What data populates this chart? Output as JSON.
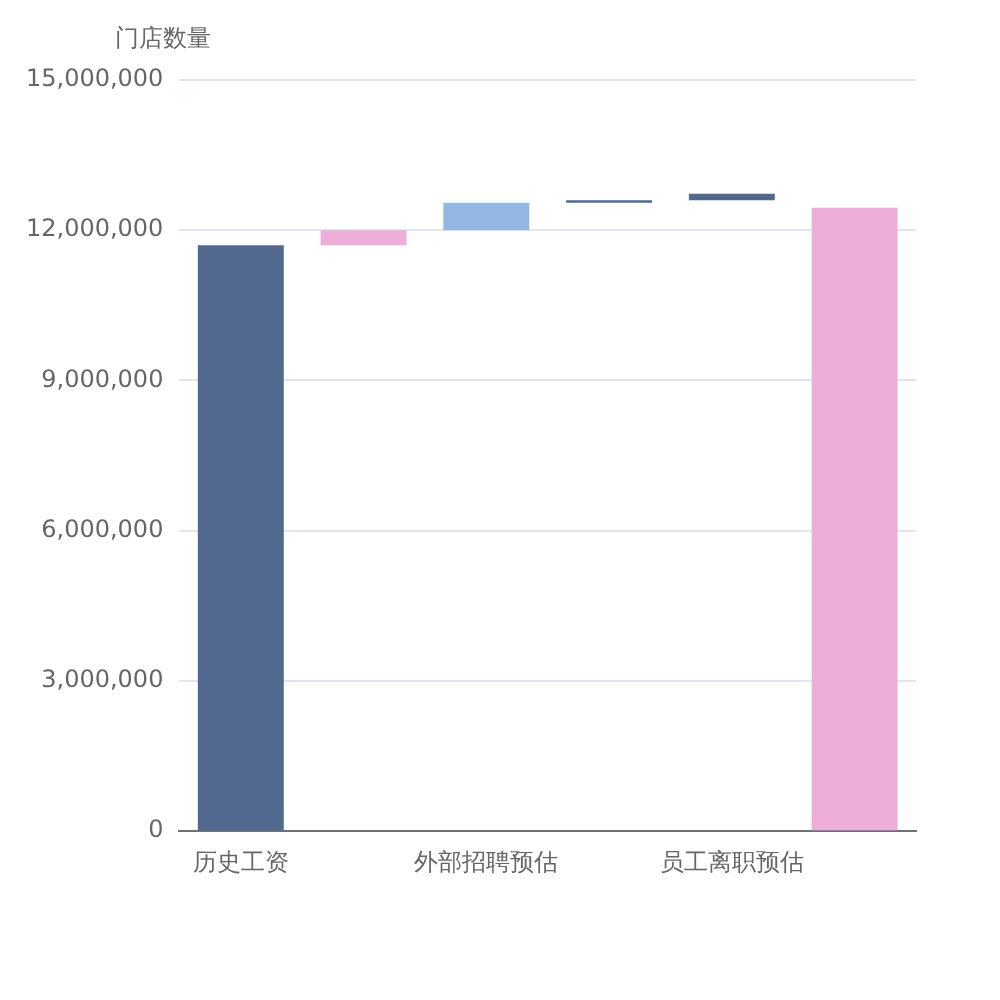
{
  "chart_data": {
    "type": "bar",
    "ylabel": "门店数量",
    "categories": [
      "历史工资",
      null,
      "外部招聘预估",
      null,
      "员工离职预估",
      null
    ],
    "values": [
      11700000,
      300000,
      550000,
      50000,
      130000,
      12450000
    ],
    "base": [
      0,
      11700000,
      12000000,
      12550000,
      12600000,
      0
    ],
    "colors": [
      "#51698f",
      "#edaed8",
      "#93b7e3",
      "#51698f",
      "#51698f",
      "#edaed8"
    ],
    "ylim": [
      0,
      15000000
    ],
    "yticks": [
      {
        "value": 0,
        "label": "0"
      },
      {
        "value": 3000000,
        "label": "3,000,000"
      },
      {
        "value": 6000000,
        "label": "6,000,000"
      },
      {
        "value": 9000000,
        "label": "9,000,000"
      },
      {
        "value": 12000000,
        "label": "12,000,000"
      },
      {
        "value": 15000000,
        "label": "15,000,000"
      }
    ],
    "grid": "y",
    "legend": false
  }
}
